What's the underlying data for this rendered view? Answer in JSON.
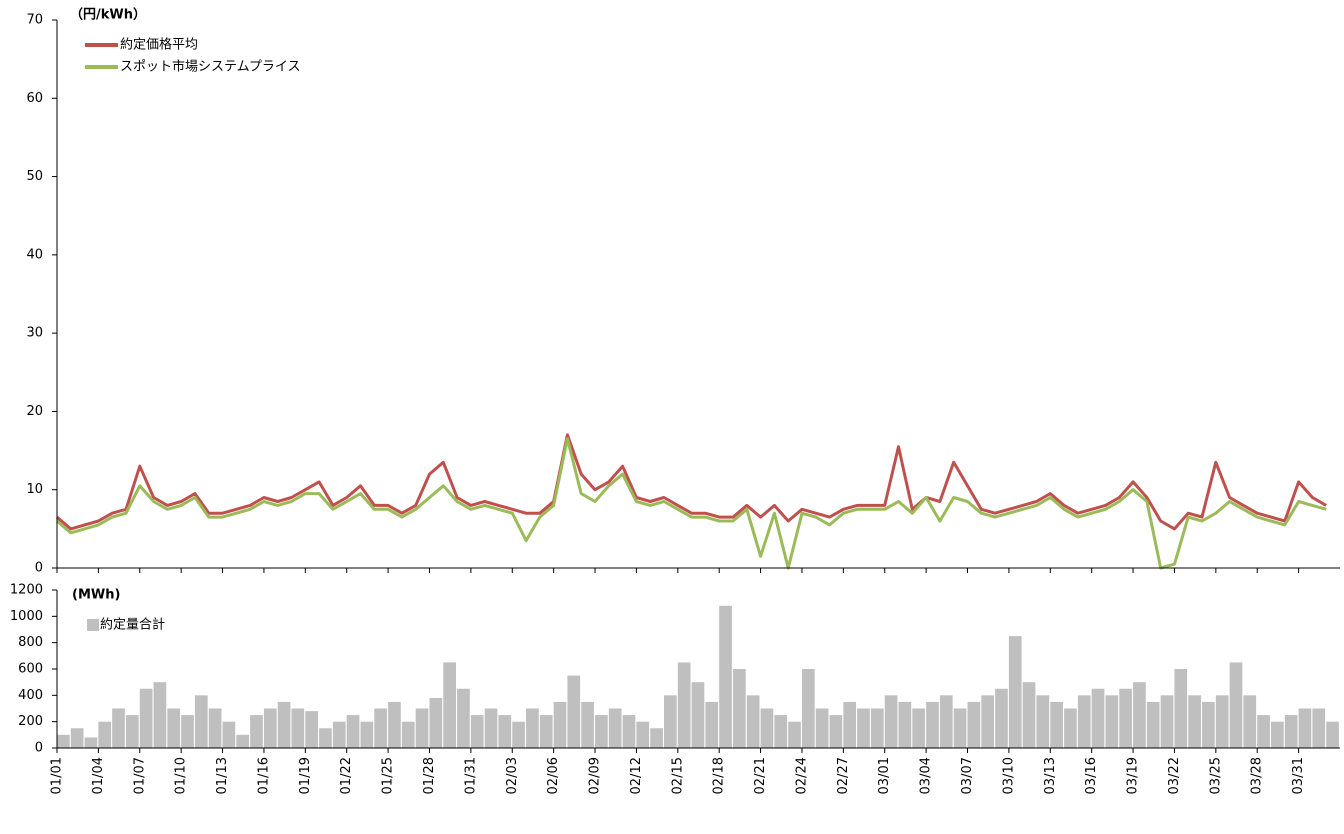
{
  "chart_data": [
    {
      "type": "line",
      "y_label": "（円/kWh）",
      "ylim": [
        0,
        70
      ],
      "yticks": [
        0,
        10,
        20,
        30,
        40,
        50,
        60,
        70
      ],
      "legend": "top-left",
      "series": [
        {
          "name": "約定価格平均",
          "color": "#c0504d",
          "values": [
            6.5,
            5,
            5.5,
            6,
            7,
            7.5,
            13,
            9,
            8,
            8.5,
            9.5,
            7,
            7,
            7.5,
            8,
            9,
            8.5,
            9,
            10,
            11,
            8,
            9,
            10.5,
            8,
            8,
            7,
            8,
            12,
            13.5,
            9,
            8,
            8.5,
            8,
            7.5,
            7,
            7,
            8.5,
            17,
            12,
            10,
            11,
            13,
            9,
            8.5,
            9,
            8,
            7,
            7,
            6.5,
            6.5,
            8,
            6.5,
            8,
            6,
            7.5,
            7,
            6.5,
            7.5,
            8,
            8,
            8,
            15.5,
            7.5,
            9,
            8.5,
            13.5,
            10.5,
            7.5,
            7,
            7.5,
            8,
            8.5,
            9.5,
            8,
            7,
            7.5,
            8,
            9,
            11,
            9,
            6,
            5,
            7,
            6.5,
            13.5,
            9,
            8,
            7,
            6.5,
            6,
            11,
            9,
            8
          ]
        },
        {
          "name": "スポット市場システムプライス",
          "color": "#9bbb59",
          "values": [
            6,
            4.5,
            5,
            5.5,
            6.5,
            7,
            10.5,
            8.5,
            7.5,
            8,
            9,
            6.5,
            6.5,
            7,
            7.5,
            8.5,
            8,
            8.5,
            9.5,
            9.5,
            7.5,
            8.5,
            9.5,
            7.5,
            7.5,
            6.5,
            7.5,
            9,
            10.5,
            8.5,
            7.5,
            8,
            7.5,
            7,
            3.5,
            6.5,
            8,
            16.5,
            9.5,
            8.5,
            10.5,
            12,
            8.5,
            8,
            8.5,
            7.5,
            6.5,
            6.5,
            6,
            6,
            7.5,
            1.5,
            7,
            0,
            7,
            6.5,
            5.5,
            7,
            7.5,
            7.5,
            7.5,
            8.5,
            7,
            9,
            6,
            9,
            8.5,
            7,
            6.5,
            7,
            7.5,
            8,
            9,
            7.5,
            6.5,
            7,
            7.5,
            8.5,
            10,
            8.5,
            0,
            0.5,
            6.5,
            6,
            7,
            8.5,
            7.5,
            6.5,
            6,
            5.5,
            8.5,
            8,
            7.5
          ]
        }
      ]
    },
    {
      "type": "bar",
      "y_label": "(MWh)",
      "ylim": [
        0,
        1200
      ],
      "yticks": [
        0,
        200,
        400,
        600,
        800,
        1000,
        1200
      ],
      "legend": "top-left",
      "series": [
        {
          "name": "約定量合計",
          "color": "#bfbfbf",
          "values": [
            100,
            150,
            80,
            200,
            300,
            250,
            450,
            500,
            300,
            250,
            400,
            300,
            200,
            100,
            250,
            300,
            350,
            300,
            280,
            150,
            200,
            250,
            200,
            300,
            350,
            200,
            300,
            380,
            650,
            450,
            250,
            300,
            250,
            200,
            300,
            250,
            350,
            550,
            350,
            250,
            300,
            250,
            200,
            150,
            400,
            650,
            500,
            350,
            1080,
            600,
            400,
            300,
            250,
            200,
            600,
            300,
            250,
            350,
            300,
            300,
            400,
            350,
            300,
            350,
            400,
            300,
            350,
            400,
            450,
            850,
            500,
            400,
            350,
            300,
            400,
            450,
            400,
            450,
            500,
            350,
            400,
            600,
            400,
            350,
            400,
            650,
            400,
            250,
            200,
            250,
            300,
            300,
            200
          ]
        }
      ],
      "categories": [
        "01/01",
        null,
        null,
        "01/04",
        null,
        null,
        "01/07",
        null,
        null,
        "01/10",
        null,
        null,
        "01/13",
        null,
        null,
        "01/16",
        null,
        null,
        "01/19",
        null,
        null,
        "01/22",
        null,
        null,
        "01/25",
        null,
        null,
        "01/28",
        null,
        null,
        "01/31",
        null,
        null,
        "02/03",
        null,
        null,
        "02/06",
        null,
        null,
        "02/09",
        null,
        null,
        "02/12",
        null,
        null,
        "02/15",
        null,
        null,
        "02/18",
        null,
        null,
        "02/21",
        null,
        null,
        "02/24",
        null,
        null,
        "02/27",
        null,
        null,
        "03/01",
        null,
        null,
        "03/04",
        null,
        null,
        "03/07",
        null,
        null,
        "03/10",
        null,
        null,
        "03/13",
        null,
        null,
        "03/16",
        null,
        null,
        "03/19",
        null,
        null,
        "03/22",
        null,
        null,
        "03/25",
        null,
        null,
        "03/28",
        null,
        null,
        "03/31",
        null,
        null
      ]
    }
  ]
}
